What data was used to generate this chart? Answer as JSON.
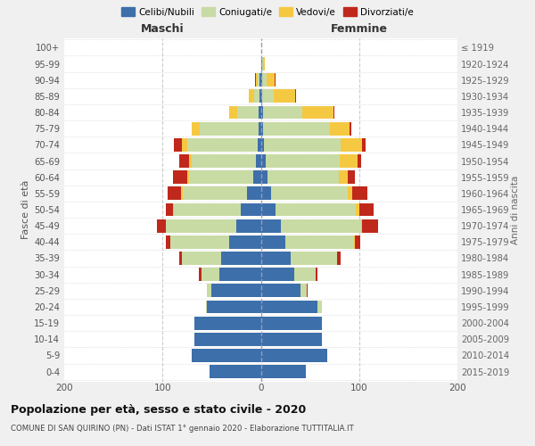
{
  "age_groups": [
    "100+",
    "95-99",
    "90-94",
    "85-89",
    "80-84",
    "75-79",
    "70-74",
    "65-69",
    "60-64",
    "55-59",
    "50-54",
    "45-49",
    "40-44",
    "35-39",
    "30-34",
    "25-29",
    "20-24",
    "15-19",
    "10-14",
    "5-9",
    "0-4"
  ],
  "birth_years": [
    "≤ 1919",
    "1920-1924",
    "1925-1929",
    "1930-1934",
    "1935-1939",
    "1940-1944",
    "1945-1949",
    "1950-1954",
    "1955-1959",
    "1960-1964",
    "1965-1969",
    "1970-1974",
    "1975-1979",
    "1980-1984",
    "1985-1989",
    "1990-1994",
    "1995-1999",
    "2000-2004",
    "2005-2009",
    "2010-2014",
    "2015-2019"
  ],
  "colors": {
    "celibi": "#3d6faa",
    "coniugati": "#c8dba4",
    "vedovi": "#f5c842",
    "divorziati": "#c0281c"
  },
  "males": {
    "celibi": [
      0,
      0,
      1,
      1,
      2,
      2,
      3,
      5,
      8,
      14,
      20,
      25,
      32,
      40,
      42,
      50,
      55,
      68,
      68,
      70,
      52
    ],
    "coniugati": [
      0,
      0,
      2,
      6,
      22,
      60,
      72,
      65,
      65,
      65,
      68,
      72,
      60,
      40,
      18,
      5,
      1,
      0,
      0,
      0,
      0
    ],
    "vedovi": [
      0,
      0,
      2,
      5,
      8,
      8,
      5,
      3,
      2,
      2,
      1,
      0,
      0,
      0,
      0,
      0,
      0,
      0,
      0,
      0,
      0
    ],
    "divorziati": [
      0,
      0,
      1,
      0,
      0,
      0,
      8,
      10,
      14,
      14,
      8,
      9,
      5,
      3,
      3,
      0,
      0,
      0,
      0,
      0,
      0
    ]
  },
  "females": {
    "nubili": [
      0,
      1,
      1,
      1,
      2,
      2,
      3,
      5,
      7,
      10,
      15,
      20,
      25,
      30,
      34,
      40,
      58,
      62,
      62,
      68,
      46
    ],
    "coniugate": [
      0,
      1,
      5,
      12,
      40,
      68,
      78,
      75,
      72,
      78,
      82,
      82,
      70,
      48,
      22,
      7,
      4,
      0,
      0,
      0,
      0
    ],
    "vedove": [
      0,
      2,
      8,
      22,
      32,
      20,
      22,
      18,
      9,
      5,
      3,
      1,
      1,
      0,
      0,
      0,
      0,
      0,
      0,
      0,
      0
    ],
    "divorziate": [
      0,
      0,
      1,
      1,
      1,
      2,
      4,
      4,
      8,
      15,
      15,
      16,
      5,
      3,
      2,
      1,
      0,
      0,
      0,
      0,
      0
    ]
  },
  "xlim": 200,
  "title": "Popolazione per età, sesso e stato civile - 2020",
  "subtitle": "COMUNE DI SAN QUIRINO (PN) - Dati ISTAT 1° gennaio 2020 - Elaborazione TUTTITALIA.IT",
  "ylabel_left": "Fasce di età",
  "ylabel_right": "Anni di nascita",
  "xlabel_maschi": "Maschi",
  "xlabel_femmine": "Femmine",
  "legend_labels": [
    "Celibi/Nubili",
    "Coniugati/e",
    "Vedovi/e",
    "Divorziati/e"
  ],
  "bg_color": "#f0f0f0",
  "plot_bg": "#ffffff"
}
